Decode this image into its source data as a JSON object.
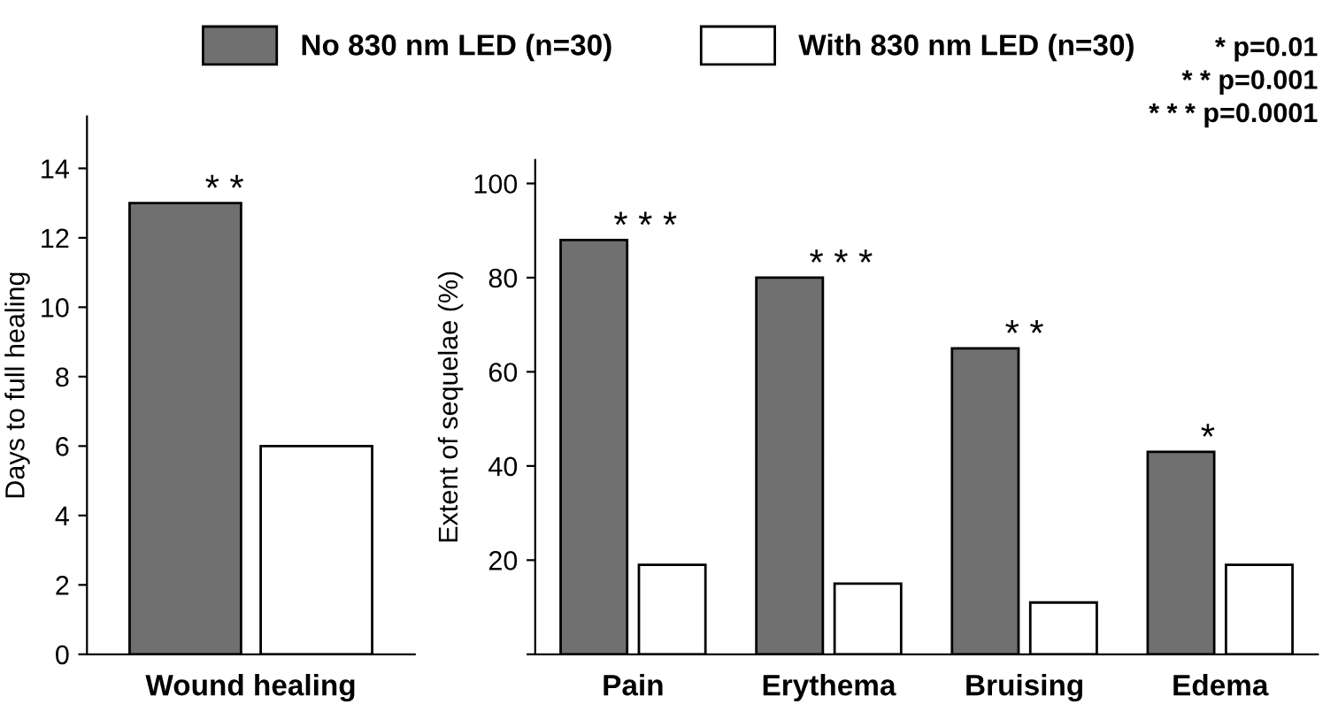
{
  "chart_data": [
    {
      "type": "bar",
      "ylabel": "Days to full healing",
      "categories": [
        "Wound healing"
      ],
      "series": [
        {
          "name": "No 830 nm LED (n=30)",
          "color": "#707070",
          "values": [
            13
          ]
        },
        {
          "name": "With 830 nm LED (n=30)",
          "color": "#ffffff",
          "values": [
            6
          ]
        }
      ],
      "ylim": [
        0,
        15.5
      ],
      "yticks": [
        0,
        2,
        4,
        6,
        8,
        10,
        12,
        14
      ],
      "legend": "top",
      "annotations": [
        "* *"
      ]
    },
    {
      "type": "bar",
      "ylabel": "Extent of sequelae (%)",
      "categories": [
        "Pain",
        "Erythema",
        "Bruising",
        "Edema"
      ],
      "series": [
        {
          "name": "No 830 nm LED (n=30)",
          "color": "#707070",
          "values": [
            88,
            80,
            65,
            43
          ]
        },
        {
          "name": "With 830 nm LED (n=30)",
          "color": "#ffffff",
          "values": [
            19,
            15,
            11,
            19
          ]
        }
      ],
      "ylim": [
        0,
        105
      ],
      "yticks": [
        {
          "value": 0,
          "label": null
        },
        20,
        40,
        60,
        80,
        100
      ],
      "legend": "top",
      "annotations": [
        "* * *",
        "* * *",
        "* *",
        "*",
        "* p=0.01\n* * p=0.001\n* * * p=0.0001"
      ]
    }
  ]
}
